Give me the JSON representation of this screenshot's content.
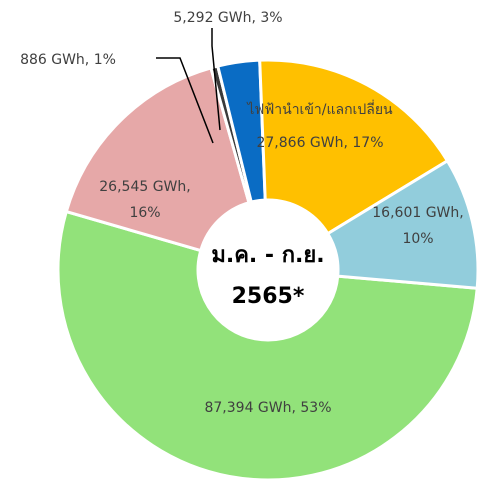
{
  "chart_data": {
    "type": "donut",
    "title": "ม.ค. - ก.ย.",
    "subtitle": "2565*",
    "categories": [
      null,
      null,
      null,
      null,
      "ไฟฟ้านำเข้า/แลกเปลี่ยน",
      null
    ],
    "values": [
      87394,
      26545,
      886,
      5292,
      27866,
      16601
    ],
    "value_labels": [
      "87,394 GWh, 53%",
      "26,545 GWh, 16%",
      "886 GWh, 1%",
      "5,292 GWh, 3%",
      "27,866 GWh, 17%",
      "16,601 GWh, 10%"
    ],
    "colors": [
      "#92e27a",
      "#e6a8a8",
      "#3a3a3a",
      "#0a6cc4",
      "#ffc000",
      "#92cddc"
    ]
  }
}
